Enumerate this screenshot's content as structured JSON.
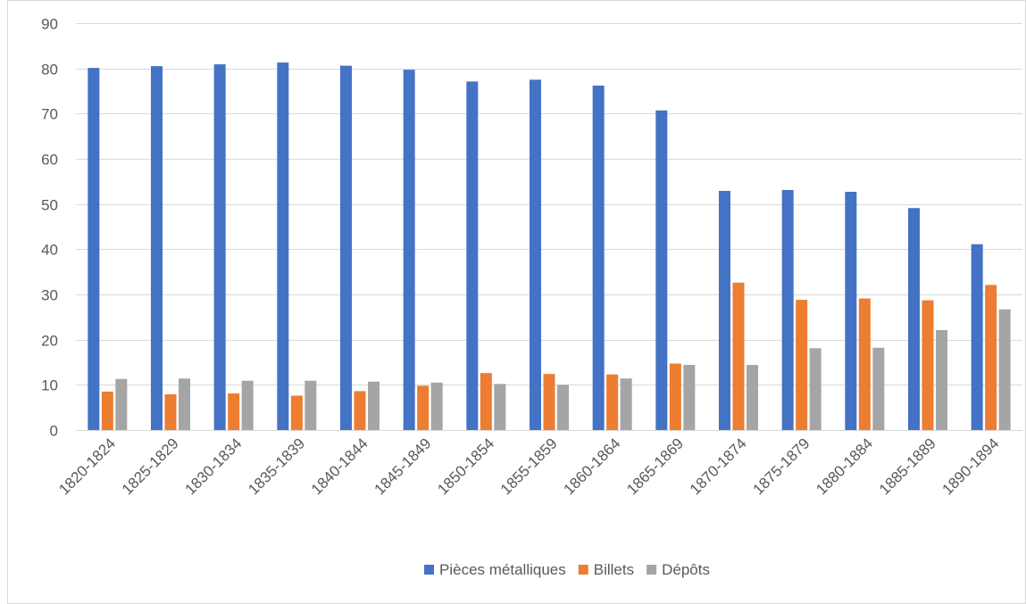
{
  "chart_data": {
    "type": "bar",
    "title": "",
    "xlabel": "",
    "ylabel": "",
    "ylim": [
      0,
      90
    ],
    "yticks": [
      0,
      10,
      20,
      30,
      40,
      50,
      60,
      70,
      80,
      90
    ],
    "grid": true,
    "legend_position": "bottom",
    "categories": [
      "1820-1824",
      "1825-1829",
      "1830-1834",
      "1835-1839",
      "1840-1844",
      "1845-1849",
      "1850-1854",
      "1855-1859",
      "1860-1864",
      "1865-1869",
      "1870-1874",
      "1875-1879",
      "1880-1884",
      "1885-1889",
      "1890-1894"
    ],
    "series": [
      {
        "name": "Pièces métalliques",
        "color": "#4472c4",
        "values": [
          80.1,
          80.5,
          80.9,
          81.3,
          80.6,
          79.7,
          77.1,
          77.5,
          76.2,
          70.7,
          52.9,
          53.1,
          52.7,
          49.1,
          41.1
        ]
      },
      {
        "name": "Billets",
        "color": "#ed7d31",
        "values": [
          8.5,
          7.9,
          8.1,
          7.6,
          8.6,
          9.8,
          12.6,
          12.4,
          12.3,
          14.7,
          32.6,
          28.8,
          29.1,
          28.7,
          32.1
        ]
      },
      {
        "name": "Dépôts",
        "color": "#a5a5a5",
        "values": [
          11.3,
          11.4,
          10.9,
          10.9,
          10.7,
          10.5,
          10.2,
          10.0,
          11.4,
          14.4,
          14.4,
          18.1,
          18.2,
          22.1,
          26.7
        ]
      }
    ]
  }
}
